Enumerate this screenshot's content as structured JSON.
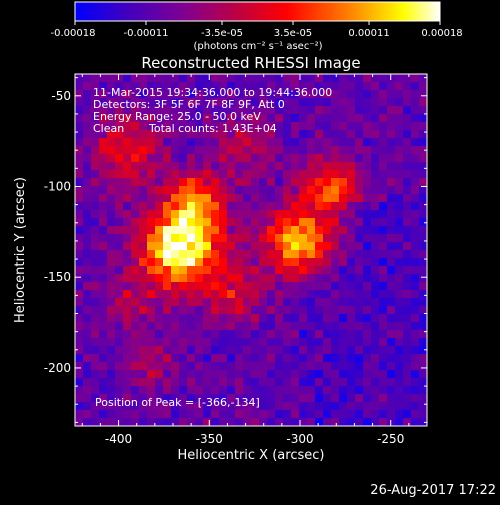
{
  "chart_data": {
    "type": "heatmap",
    "title": "Reconstructed RHESSI Image",
    "xlabel": "Heliocentric X (arcsec)",
    "ylabel": "Heliocentric Y (arcsec)",
    "xlim": [
      -424,
      -230
    ],
    "ylim": [
      -232,
      -38
    ],
    "x_ticks": [
      "-400",
      "-350",
      "-300",
      "-250"
    ],
    "x_tick_values": [
      -400,
      -350,
      -300,
      -250
    ],
    "y_ticks": [
      "-50",
      "-100",
      "-150",
      "-200"
    ],
    "y_tick_values": [
      -50,
      -100,
      -150,
      -200
    ],
    "colorbar": {
      "ticks": [
        "-0.00018",
        "-0.00011",
        "-3.5e-05",
        "3.5e-05",
        "0.00011",
        "0.00018"
      ],
      "tick_values": [
        -0.00018,
        -0.00011,
        -3.5e-05,
        3.5e-05,
        0.00011,
        0.00018
      ],
      "min": -0.00018,
      "max": 0.00018,
      "unit_label": "(photons cm⁻² s⁻¹ asec⁻²)",
      "colormap": [
        "#0000ff",
        "#4000c0",
        "#800090",
        "#c00040",
        "#ff0000",
        "#ff8000",
        "#ffff00",
        "#ffffff"
      ]
    },
    "annotations": {
      "time_range": "11-Mar-2015 19:34:36.000 to 19:44:36.000",
      "detectors": "Detectors: 3F 5F 6F 7F 8F 9F, Att 0",
      "energy": "Energy Range: 25.0 - 50.0 keV",
      "clean_label": "Clean",
      "total_counts": "Total counts: 1.43E+04",
      "peak": "Position of Peak = [-366,-134]"
    },
    "peak_position": [
      -366,
      -134
    ],
    "sources": [
      {
        "x": -366,
        "y": -134,
        "sigma": 16,
        "amp": 1.0
      },
      {
        "x": -357,
        "y": -108,
        "sigma": 11,
        "amp": 0.55
      },
      {
        "x": -300,
        "y": -130,
        "sigma": 13,
        "amp": 0.85
      },
      {
        "x": -283,
        "y": -100,
        "sigma": 11,
        "amp": 0.55
      },
      {
        "x": -395,
        "y": -80,
        "sigma": 13,
        "amp": 0.45
      },
      {
        "x": -332,
        "y": -78,
        "sigma": 11,
        "amp": 0.3
      },
      {
        "x": -335,
        "y": -160,
        "sigma": 10,
        "amp": 0.35
      },
      {
        "x": -382,
        "y": -198,
        "sigma": 9,
        "amp": 0.25
      },
      {
        "x": -395,
        "y": -165,
        "sigma": 10,
        "amp": 0.25
      }
    ]
  },
  "footer": {
    "datestamp": "26-Aug-2017 17:22"
  }
}
